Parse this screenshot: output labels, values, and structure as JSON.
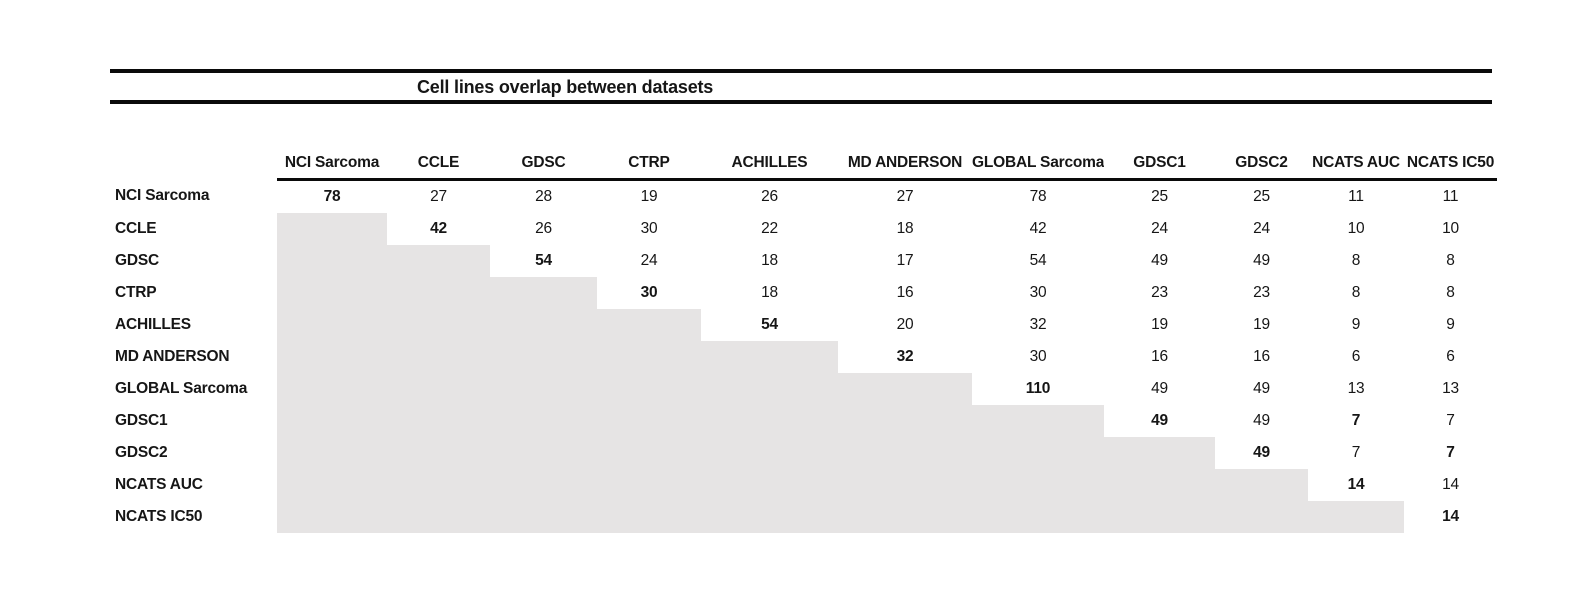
{
  "title": "Cell lines overlap between datasets",
  "colors": {
    "shade": "#e6e4e4",
    "text": "#161616",
    "rule": "#0a0a0a",
    "background": "#ffffff"
  },
  "chart_data": {
    "type": "table",
    "title": "Cell lines overlap between datasets",
    "columns": [
      "NCI Sarcoma",
      "CCLE",
      "GDSC",
      "CTRP",
      "ACHILLES",
      "MD ANDERSON",
      "GLOBAL Sarcoma",
      "GDSC1",
      "GDSC2",
      "NCATS AUC",
      "NCATS IC50"
    ],
    "rows": [
      {
        "label": "NCI Sarcoma",
        "values": [
          78,
          27,
          28,
          19,
          26,
          27,
          78,
          25,
          25,
          11,
          11
        ]
      },
      {
        "label": "CCLE",
        "values": [
          null,
          42,
          26,
          30,
          22,
          18,
          42,
          24,
          24,
          10,
          10
        ]
      },
      {
        "label": "GDSC",
        "values": [
          null,
          null,
          54,
          24,
          18,
          17,
          54,
          49,
          49,
          8,
          8
        ]
      },
      {
        "label": "CTRP",
        "values": [
          null,
          null,
          null,
          30,
          18,
          16,
          30,
          23,
          23,
          8,
          8
        ]
      },
      {
        "label": "ACHILLES",
        "values": [
          null,
          null,
          null,
          null,
          54,
          20,
          32,
          19,
          19,
          9,
          9
        ]
      },
      {
        "label": "MD ANDERSON",
        "values": [
          null,
          null,
          null,
          null,
          null,
          32,
          30,
          16,
          16,
          6,
          6
        ]
      },
      {
        "label": "GLOBAL Sarcoma",
        "values": [
          null,
          null,
          null,
          null,
          null,
          null,
          110,
          49,
          49,
          13,
          13
        ]
      },
      {
        "label": "GDSC1",
        "values": [
          null,
          null,
          null,
          null,
          null,
          null,
          null,
          49,
          49,
          7,
          7
        ]
      },
      {
        "label": "GDSC2",
        "values": [
          null,
          null,
          null,
          null,
          null,
          null,
          null,
          null,
          49,
          7,
          7
        ]
      },
      {
        "label": "NCATS AUC",
        "values": [
          null,
          null,
          null,
          null,
          null,
          null,
          null,
          null,
          null,
          14,
          14
        ]
      },
      {
        "label": "NCATS IC50",
        "values": [
          null,
          null,
          null,
          null,
          null,
          null,
          null,
          null,
          null,
          null,
          14
        ]
      }
    ],
    "bold_diagonal": true,
    "extra_bold_cells": [
      [
        7,
        9
      ],
      [
        8,
        10
      ]
    ],
    "layout_hints": {
      "lower_triangle": "shaded light gray, empty",
      "upper_triangle": "numeric overlap counts",
      "header_rule": "thin rule under column headers spanning data columns only",
      "title_rules": "thick rules above and below title spanning full table width"
    }
  }
}
